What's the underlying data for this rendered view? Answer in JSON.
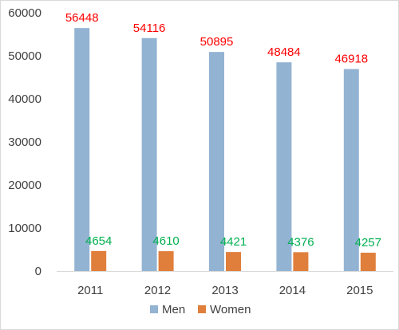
{
  "chart_data": {
    "type": "bar",
    "title": "",
    "xlabel": "",
    "ylabel": "",
    "categories": [
      "2011",
      "2012",
      "2013",
      "2014",
      "2015"
    ],
    "series": [
      {
        "name": "Men",
        "values": [
          56448,
          54116,
          50895,
          48484,
          46918
        ],
        "color": "#93B3D3",
        "label_color": "#FF0000"
      },
      {
        "name": "Women",
        "values": [
          4654,
          4610,
          4421,
          4376,
          4257
        ],
        "color": "#E07F3B",
        "label_color": "#00B050"
      }
    ],
    "ylim": [
      0,
      60000
    ],
    "yticks": [
      "0",
      "10000",
      "20000",
      "30000",
      "40000",
      "50000",
      "60000"
    ],
    "grid": false,
    "legend_position": "bottom"
  }
}
